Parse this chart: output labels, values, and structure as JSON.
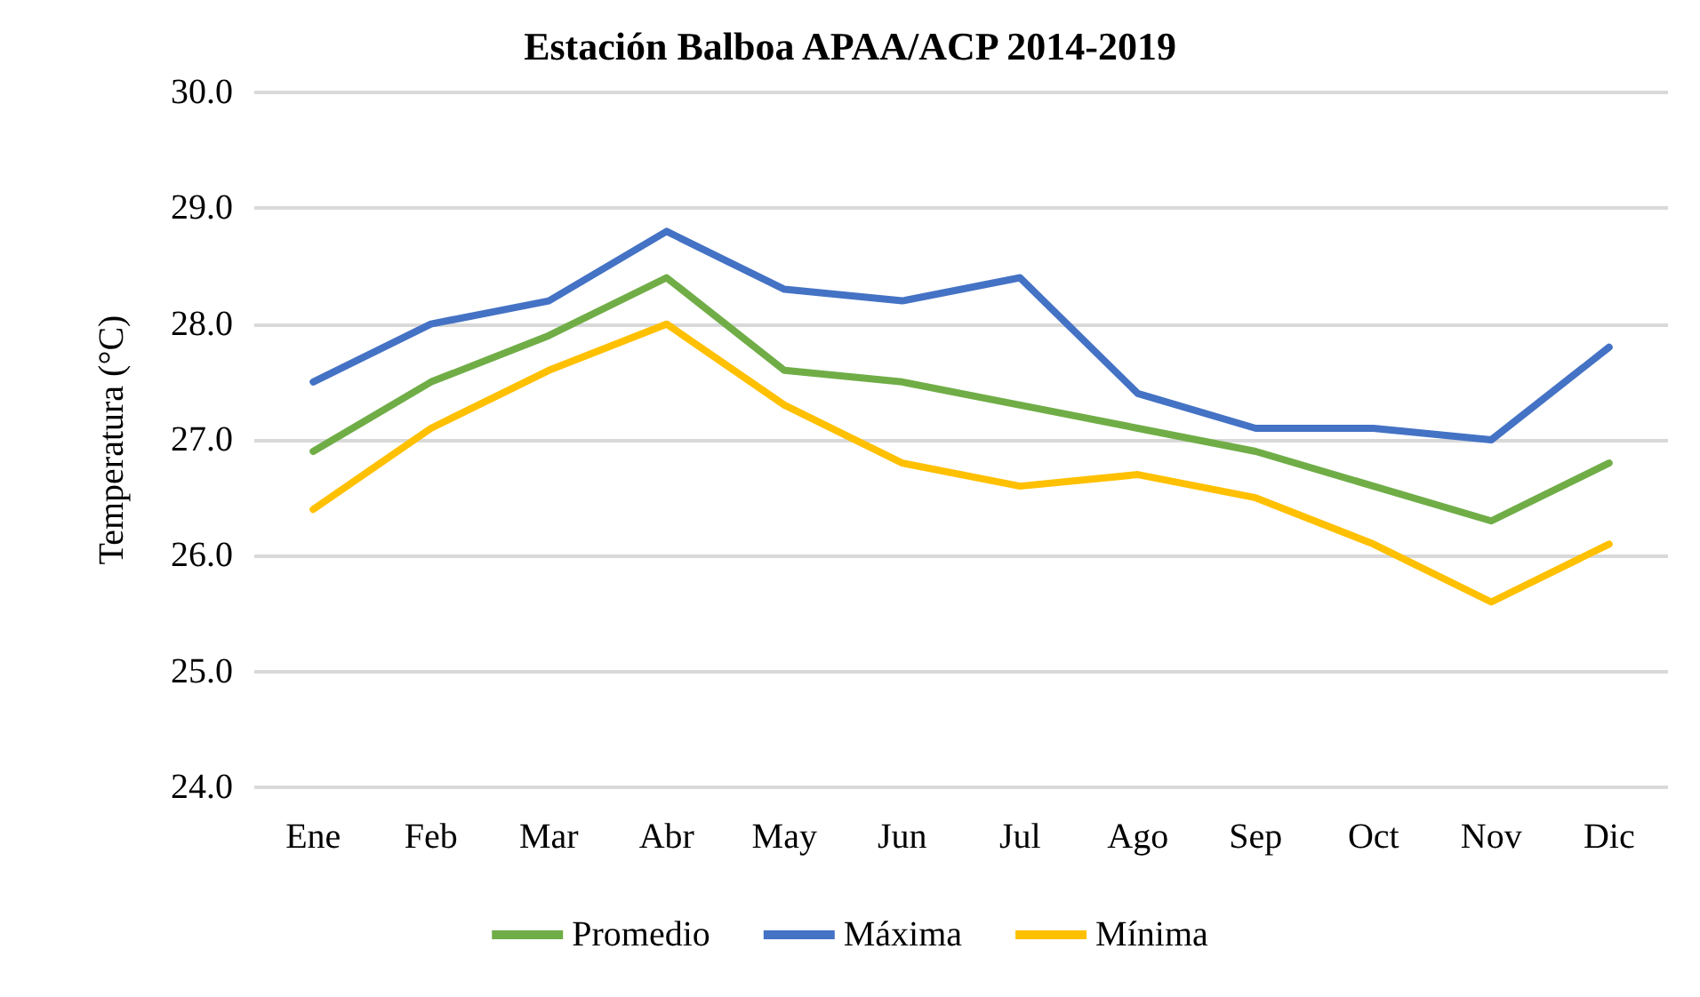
{
  "chart_data": {
    "type": "line",
    "title": "Estación Balboa APAA/ACP 2014-2019",
    "ylabel": "Temperatura (°C)",
    "categories": [
      "Ene",
      "Feb",
      "Mar",
      "Abr",
      "May",
      "Jun",
      "Jul",
      "Ago",
      "Sep",
      "Oct",
      "Nov",
      "Dic"
    ],
    "series": [
      {
        "name": "Promedio",
        "color": "#70ad47",
        "values": [
          26.9,
          27.5,
          27.9,
          28.4,
          27.6,
          27.5,
          27.3,
          27.1,
          26.9,
          26.6,
          26.3,
          26.8
        ]
      },
      {
        "name": "Máxima",
        "color": "#4472c4",
        "values": [
          27.5,
          28.0,
          28.2,
          28.8,
          28.3,
          28.2,
          28.4,
          27.4,
          27.1,
          27.1,
          27.0,
          27.8
        ]
      },
      {
        "name": "Mínima",
        "color": "#ffc000",
        "values": [
          26.4,
          27.1,
          27.6,
          28.0,
          27.3,
          26.8,
          26.6,
          26.7,
          26.5,
          26.1,
          25.6,
          26.1
        ]
      }
    ],
    "ylim": [
      24,
      30
    ],
    "yticks": [
      {
        "value": 24,
        "label": "24.0"
      },
      {
        "value": 25,
        "label": "25.0"
      },
      {
        "value": 26,
        "label": "26.0"
      },
      {
        "value": 27,
        "label": "27.0"
      },
      {
        "value": 28,
        "label": "28.0"
      },
      {
        "value": 29,
        "label": "29.0"
      },
      {
        "value": 30,
        "label": "30.0"
      }
    ],
    "grid": "y",
    "legend": "bottom",
    "marker": "none",
    "line_style": "solid"
  }
}
